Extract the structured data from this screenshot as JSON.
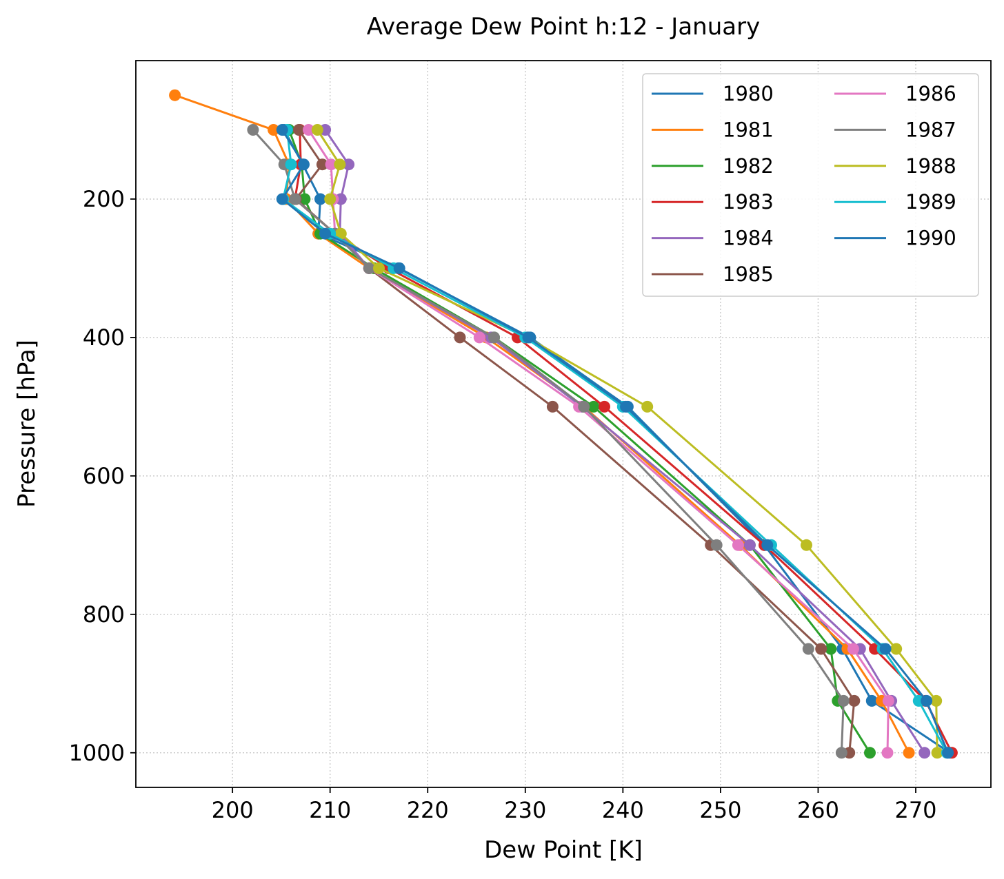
{
  "chart_data": {
    "type": "line",
    "title": "Average Dew Point h:12 - January",
    "xlabel": "Dew Point [K]",
    "ylabel": "Pressure [hPa]",
    "xlim": [
      190.1,
      277.7
    ],
    "ylim": [
      1050,
      0
    ],
    "y_inverted": true,
    "grid": true,
    "legend_position": "top-right",
    "legend_columns": 2,
    "x_ticks": [
      200,
      210,
      220,
      230,
      240,
      250,
      260,
      270
    ],
    "y_ticks": [
      200,
      400,
      600,
      800,
      1000
    ],
    "pressure_levels": [
      50,
      100,
      150,
      200,
      250,
      300,
      400,
      500,
      700,
      850,
      925,
      1000
    ],
    "series": [
      {
        "name": "1980",
        "color": "#1f77b4",
        "x": [
          null,
          205.3,
          207.2,
          209.0,
          208.8,
          217.0,
          230.5,
          240.5,
          254.5,
          262.5,
          265.5,
          273.5
        ]
      },
      {
        "name": "1981",
        "color": "#ff7f0e",
        "x": [
          194.1,
          204.2,
          205.8,
          205.5,
          208.8,
          214.0,
          226.0,
          236.0,
          252.0,
          263.0,
          266.5,
          269.3
        ]
      },
      {
        "name": "1982",
        "color": "#2ca02c",
        "x": [
          null,
          205.8,
          207.1,
          207.4,
          209.0,
          214.5,
          226.8,
          237.0,
          253.0,
          261.3,
          262.0,
          265.3
        ]
      },
      {
        "name": "1983",
        "color": "#d62728",
        "x": [
          null,
          206.9,
          207.0,
          206.4,
          210.5,
          216.0,
          229.2,
          238.1,
          254.5,
          265.8,
          271.0,
          273.7
        ]
      },
      {
        "name": "1984",
        "color": "#9467bd",
        "x": [
          null,
          209.5,
          211.9,
          211.1,
          211.0,
          214.0,
          226.5,
          235.8,
          253.0,
          264.3,
          267.5,
          270.9
        ]
      },
      {
        "name": "1985",
        "color": "#8c564b",
        "x": [
          null,
          206.8,
          209.2,
          206.5,
          210.5,
          214.0,
          223.3,
          232.8,
          249.0,
          260.3,
          263.7,
          263.2
        ]
      },
      {
        "name": "1986",
        "color": "#e377c2",
        "x": [
          null,
          207.8,
          210.1,
          210.3,
          210.5,
          214.0,
          225.3,
          235.5,
          251.8,
          263.6,
          267.2,
          267.1
        ]
      },
      {
        "name": "1987",
        "color": "#7f7f7f",
        "x": [
          null,
          202.1,
          205.3,
          206.4,
          210.5,
          214.0,
          226.8,
          236.0,
          249.6,
          259.0,
          262.6,
          262.4
        ]
      },
      {
        "name": "1988",
        "color": "#bcbd22",
        "x": [
          null,
          208.7,
          211.0,
          210.0,
          211.1,
          215.0,
          230.2,
          242.5,
          258.8,
          268.0,
          272.1,
          272.2
        ]
      },
      {
        "name": "1989",
        "color": "#17becf",
        "x": [
          null,
          205.6,
          206.0,
          205.2,
          210.0,
          216.5,
          230.0,
          240.0,
          255.2,
          266.6,
          270.3,
          273.2
        ]
      },
      {
        "name": "1990",
        "color": "#1f77b4",
        "x": [
          null,
          205.1,
          207.3,
          205.1,
          209.5,
          217.1,
          230.3,
          240.3,
          254.8,
          266.9,
          271.1,
          273.3
        ]
      }
    ]
  }
}
